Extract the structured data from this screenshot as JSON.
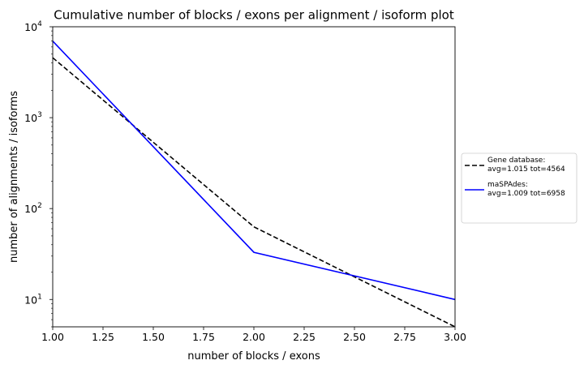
{
  "chart_data": {
    "type": "line",
    "title": "Cumulative number of blocks / exons per alignment / isoform plot",
    "xlabel": "number of blocks / exons",
    "ylabel": "number of alignments / isoforms",
    "xlim": [
      1.0,
      3.0
    ],
    "ylim": [
      5,
      10000
    ],
    "yscale": "log",
    "grid": false,
    "legend_position": "right-outside",
    "x_ticks": [
      "1.00",
      "1.25",
      "1.50",
      "1.75",
      "2.00",
      "2.25",
      "2.50",
      "2.75",
      "3.00"
    ],
    "x_tick_values": [
      1.0,
      1.25,
      1.5,
      1.75,
      2.0,
      2.25,
      2.5,
      2.75,
      3.0
    ],
    "y_tick_values": [
      10,
      100,
      1000,
      10000
    ],
    "y_tick_labels": [
      {
        "base": "10",
        "exp": "1"
      },
      {
        "base": "10",
        "exp": "2"
      },
      {
        "base": "10",
        "exp": "3"
      },
      {
        "base": "10",
        "exp": "4"
      }
    ],
    "series": [
      {
        "name": "Gene database:",
        "name_line2": "avg=1.015 tot=4564",
        "color": "#000000",
        "dash": "dashed",
        "x": [
          1,
          2,
          3
        ],
        "y": [
          4564,
          63,
          5
        ]
      },
      {
        "name": "maSPAdes:",
        "name_line2": "avg=1.009 tot=6958",
        "color": "#0000ff",
        "dash": "solid",
        "x": [
          1,
          2,
          3
        ],
        "y": [
          6958,
          33,
          10
        ]
      }
    ]
  }
}
